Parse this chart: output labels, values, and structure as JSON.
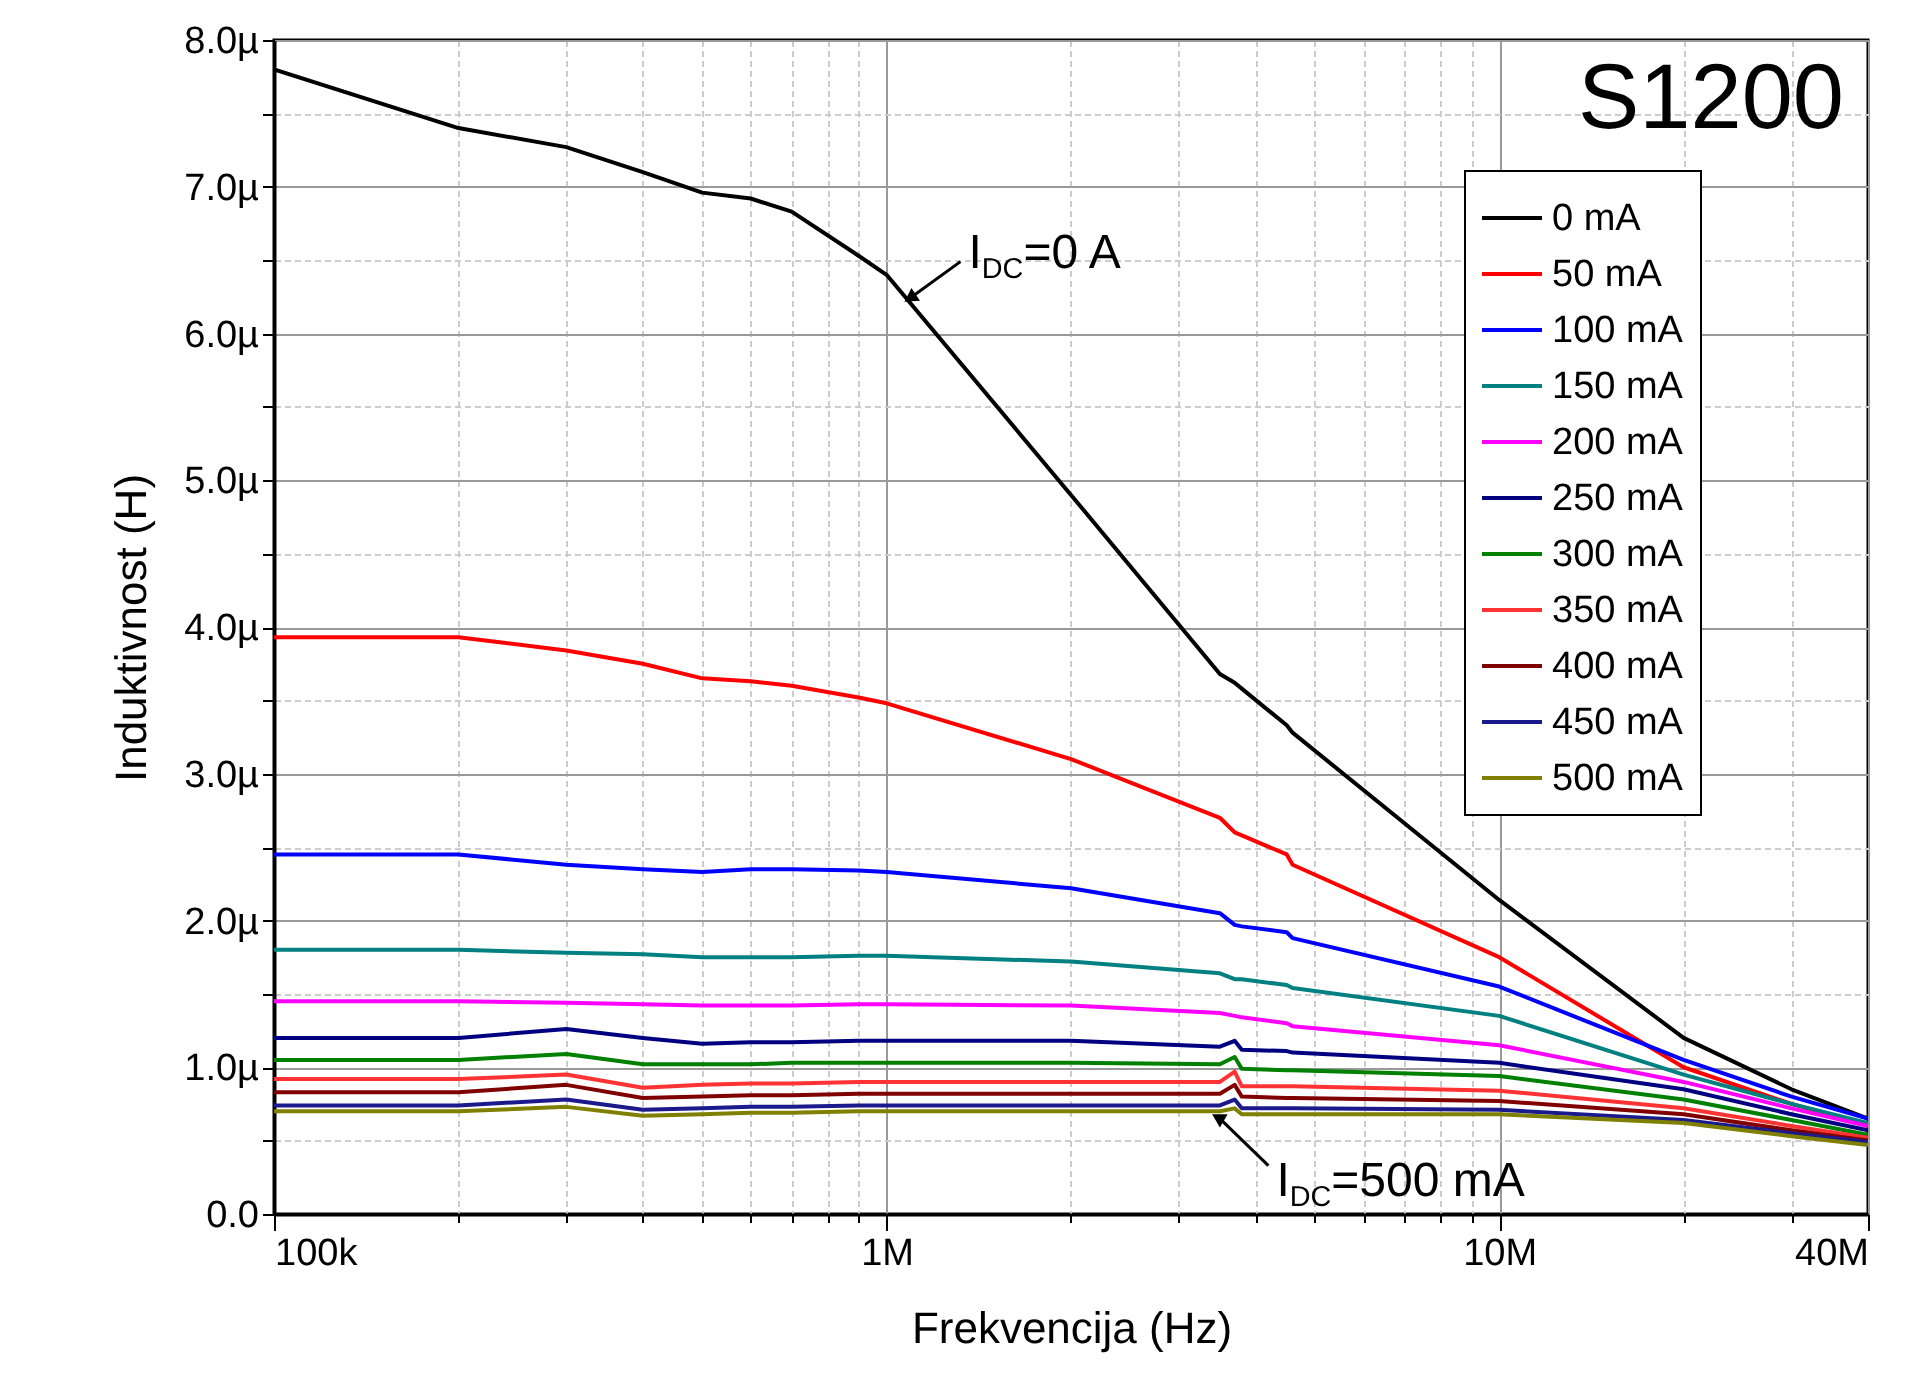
{
  "chart_data": {
    "type": "line",
    "xlabel": "Frekvencija (Hz)",
    "ylabel": "Induktivnost (H)",
    "log": "x",
    "grid": true,
    "legend": "top right",
    "line_style": "solid",
    "marker": "none",
    "x": [
      100000,
      200000,
      300000,
      400000,
      500000,
      600000,
      700000,
      900000,
      1000000,
      2000000,
      3500000,
      3700000,
      3800000,
      4500000,
      4600000,
      10000000,
      20000000,
      30000000,
      40000000
    ],
    "xlim": [
      100000,
      40000000
    ],
    "xticks": [
      {
        "value": 100000,
        "label": "100k"
      },
      {
        "value": 200000,
        "label": null
      },
      {
        "value": 300000,
        "label": null
      },
      {
        "value": 400000,
        "label": null
      },
      {
        "value": 500000,
        "label": null
      },
      {
        "value": 600000,
        "label": null
      },
      {
        "value": 700000,
        "label": null
      },
      {
        "value": 800000,
        "label": null
      },
      {
        "value": 900000,
        "label": null
      },
      {
        "value": 1000000,
        "label": "1M"
      },
      {
        "value": 2000000,
        "label": null
      },
      {
        "value": 3000000,
        "label": null
      },
      {
        "value": 4000000,
        "label": null
      },
      {
        "value": 5000000,
        "label": null
      },
      {
        "value": 6000000,
        "label": null
      },
      {
        "value": 7000000,
        "label": null
      },
      {
        "value": 8000000,
        "label": null
      },
      {
        "value": 9000000,
        "label": null
      },
      {
        "value": 10000000,
        "label": "10M"
      },
      {
        "value": 20000000,
        "label": null
      },
      {
        "value": 30000000,
        "label": null
      },
      {
        "value": 40000000,
        "label": "40M"
      }
    ],
    "ylim": [
      0,
      8
    ],
    "yticks": [
      {
        "value": 0,
        "label": "0.0"
      },
      {
        "value": 0.5,
        "label": null
      },
      {
        "value": 1,
        "label": "1.0µ"
      },
      {
        "value": 1.5,
        "label": null
      },
      {
        "value": 2,
        "label": "2.0µ"
      },
      {
        "value": 2.5,
        "label": null
      },
      {
        "value": 3,
        "label": "3.0µ"
      },
      {
        "value": 3.5,
        "label": null
      },
      {
        "value": 4,
        "label": "4.0µ"
      },
      {
        "value": 4.5,
        "label": null
      },
      {
        "value": 5,
        "label": "5.0µ"
      },
      {
        "value": 5.5,
        "label": null
      },
      {
        "value": 6,
        "label": "6.0µ"
      },
      {
        "value": 6.5,
        "label": null
      },
      {
        "value": 7,
        "label": "7.0µ"
      },
      {
        "value": 7.5,
        "label": null
      },
      {
        "value": 8,
        "label": "8.0µ"
      }
    ],
    "annotations": [
      "S1200",
      {
        "text": "I$_{DC}$=0 A",
        "x": 1100000,
        "y": 6.25
      },
      {
        "text": "I$_{DC}$=500 mA",
        "x": 3500000,
        "y": 0.65
      }
    ],
    "series": [
      {
        "name": "0 mA",
        "color": "#000000",
        "values": [
          7.8,
          7.4,
          7.27,
          7.1,
          6.96,
          6.92,
          6.83,
          6.53,
          6.4,
          4.9,
          3.68,
          3.62,
          3.58,
          3.33,
          3.28,
          2.14,
          1.2,
          0.85,
          0.65
        ]
      },
      {
        "name": "50 mA",
        "color": "#ff0000",
        "values": [
          3.93,
          3.93,
          3.84,
          3.75,
          3.65,
          3.63,
          3.6,
          3.52,
          3.48,
          3.1,
          2.7,
          2.6,
          2.58,
          2.45,
          2.38,
          1.75,
          1.0,
          0.75,
          0.6
        ]
      },
      {
        "name": "100 mA",
        "color": "#0000ff",
        "values": [
          2.45,
          2.45,
          2.38,
          2.35,
          2.33,
          2.35,
          2.35,
          2.34,
          2.33,
          2.22,
          2.05,
          1.97,
          1.96,
          1.92,
          1.88,
          1.55,
          1.05,
          0.8,
          0.65
        ]
      },
      {
        "name": "150 mA",
        "color": "#008080",
        "values": [
          1.8,
          1.8,
          1.78,
          1.77,
          1.75,
          1.75,
          1.75,
          1.76,
          1.76,
          1.72,
          1.64,
          1.6,
          1.6,
          1.56,
          1.54,
          1.35,
          0.95,
          0.75,
          0.62
        ]
      },
      {
        "name": "200 mA",
        "color": "#ff00ff",
        "values": [
          1.45,
          1.45,
          1.44,
          1.43,
          1.42,
          1.42,
          1.42,
          1.43,
          1.43,
          1.42,
          1.37,
          1.35,
          1.34,
          1.3,
          1.28,
          1.15,
          0.9,
          0.72,
          0.6
        ]
      },
      {
        "name": "250 mA",
        "color": "#000080",
        "values": [
          1.2,
          1.2,
          1.26,
          1.2,
          1.16,
          1.17,
          1.17,
          1.18,
          1.18,
          1.18,
          1.14,
          1.18,
          1.12,
          1.11,
          1.1,
          1.03,
          0.85,
          0.68,
          0.57
        ]
      },
      {
        "name": "300 mA",
        "color": "#008000",
        "values": [
          1.05,
          1.05,
          1.09,
          1.02,
          1.02,
          1.02,
          1.03,
          1.03,
          1.03,
          1.03,
          1.02,
          1.07,
          0.99,
          0.98,
          0.98,
          0.94,
          0.78,
          0.64,
          0.54
        ]
      },
      {
        "name": "350 mA",
        "color": "#ff3333",
        "values": [
          0.92,
          0.92,
          0.95,
          0.86,
          0.88,
          0.89,
          0.89,
          0.9,
          0.9,
          0.9,
          0.9,
          0.97,
          0.87,
          0.87,
          0.87,
          0.84,
          0.72,
          0.6,
          0.52
        ]
      },
      {
        "name": "400 mA",
        "color": "#800000",
        "values": [
          0.83,
          0.83,
          0.88,
          0.79,
          0.8,
          0.81,
          0.81,
          0.82,
          0.82,
          0.82,
          0.82,
          0.88,
          0.8,
          0.79,
          0.79,
          0.77,
          0.68,
          0.57,
          0.5
        ]
      },
      {
        "name": "450 mA",
        "color": "#1a1a8c",
        "values": [
          0.74,
          0.74,
          0.78,
          0.71,
          0.72,
          0.73,
          0.73,
          0.74,
          0.74,
          0.74,
          0.74,
          0.78,
          0.72,
          0.72,
          0.72,
          0.71,
          0.64,
          0.55,
          0.49
        ]
      },
      {
        "name": "500 mA",
        "color": "#808000",
        "values": [
          0.7,
          0.7,
          0.73,
          0.67,
          0.68,
          0.69,
          0.69,
          0.7,
          0.7,
          0.7,
          0.7,
          0.72,
          0.68,
          0.68,
          0.68,
          0.68,
          0.62,
          0.53,
          0.47
        ]
      }
    ]
  }
}
